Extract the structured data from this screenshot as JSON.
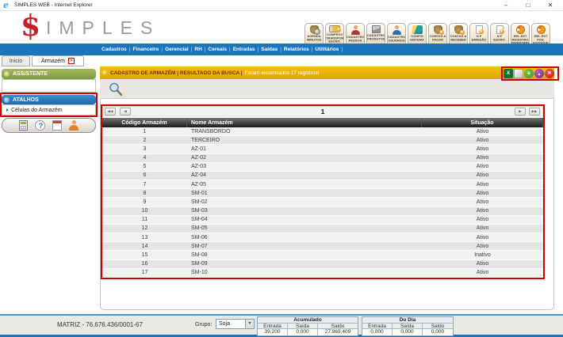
{
  "window": {
    "title": "SIMPLES WEB - Internet Explorer",
    "minimize": "–",
    "maximize": "□",
    "close": "✕"
  },
  "logo": {
    "symbol": "$",
    "letters": "IMPLES"
  },
  "quick_buttons": [
    {
      "name": "agenda-minutos",
      "label": "AGENDA MINUTOS",
      "icon": "money-bag-clock-icon"
    },
    {
      "name": "comprov-transporte-escrit",
      "label": "COMPROV TRANSPORTE ESCRIT.",
      "icon": "truck-icon"
    },
    {
      "name": "cadastro-pessoa",
      "label": "CADASTRO PESSOA",
      "icon": "person-red-icon"
    },
    {
      "name": "cadastro-produtos",
      "label": "CADASTRO PRODUTOS",
      "icon": "package-icon"
    },
    {
      "name": "cadastro-usuarios",
      "label": "CADASTRO USUÁRIOS",
      "icon": "person-blue-icon"
    },
    {
      "name": "config-sistema",
      "label": "CONFIG SISTEMA",
      "icon": "rainbow-icon"
    },
    {
      "name": "contas-a-pagar",
      "label": "CONTAS A PAGAR",
      "icon": "money-bag-plus-icon"
    },
    {
      "name": "contas-a-receber",
      "label": "CONTAS A RECEBER",
      "icon": "money-bag-plus-icon"
    },
    {
      "name": "nf-emissao",
      "label": "N F EMISSÃO",
      "icon": "document-plus-icon"
    },
    {
      "name": "nf-escrit",
      "label": "N F ESCRIT.",
      "icon": "document-plus-icon"
    },
    {
      "name": "rel-est-registro-inventario",
      "label": "REL EST REGISTRO INVENTÁRIO",
      "icon": "pie-chart-icon"
    },
    {
      "name": "rel-est-pos-estoque",
      "label": "REL EST POS. ESTOQUE",
      "icon": "pie-chart-icon"
    }
  ],
  "menu": {
    "separator": "|",
    "items": [
      "Cadastros",
      "Financeiro",
      "Gerencial",
      "RH",
      "Cereais",
      "Entradas",
      "Saídas",
      "Relatórios",
      "Utilitários"
    ]
  },
  "tabs": {
    "inicio": "Inicio",
    "armazem": "Armazém",
    "close_glyph": "✕"
  },
  "sidebar": {
    "assistente": "ASSISTENTE",
    "atalhos": "ATALHOS",
    "atalhos_items": [
      "Células do Armazém"
    ],
    "tray_icons": [
      "calculator-icon",
      "help-icon",
      "calendar-icon",
      "user-icon"
    ]
  },
  "content": {
    "header": {
      "title": "CADASTRO DE ARMAZÉM | RESULTADO DA BUSCA |",
      "message": "Foram encontrados 17 registros!"
    },
    "header_icons": [
      {
        "name": "excel-export-icon",
        "kind": "hic-excel",
        "glyph": "X"
      },
      {
        "name": "print-icon",
        "kind": "hic-file",
        "glyph": ""
      },
      {
        "name": "add-record-icon",
        "kind": "hic-add",
        "glyph": "+"
      },
      {
        "name": "collapse-up-icon",
        "kind": "hic-up",
        "glyph": "▲"
      },
      {
        "name": "close-panel-icon",
        "kind": "hic-close",
        "glyph": "✕"
      }
    ],
    "pagination": {
      "page": "1",
      "buttons": [
        {
          "name": "first-page-button",
          "glyph": "◀◀",
          "pos": "pg-l1"
        },
        {
          "name": "prev-page-button",
          "glyph": "◀",
          "pos": "pg-l2"
        },
        {
          "name": "next-page-button",
          "glyph": "▶",
          "pos": "pg-r2"
        },
        {
          "name": "last-page-button",
          "glyph": "▶▶",
          "pos": "pg-r1"
        }
      ]
    },
    "table": {
      "columns": [
        "Código Armazém",
        "Nome Armazém",
        "Situação"
      ],
      "rows": [
        [
          "1",
          "TRANSBORDO",
          "Ativo"
        ],
        [
          "2",
          "TERCEIRO",
          "Ativo"
        ],
        [
          "3",
          "AZ-01",
          "Ativo"
        ],
        [
          "4",
          "AZ-02",
          "Ativo"
        ],
        [
          "5",
          "AZ-03",
          "Ativo"
        ],
        [
          "6",
          "AZ-04",
          "Ativo"
        ],
        [
          "7",
          "AZ-05",
          "Ativo"
        ],
        [
          "8",
          "SM-01",
          "Ativo"
        ],
        [
          "9",
          "SM-02",
          "Ativo"
        ],
        [
          "10",
          "SM-03",
          "Ativo"
        ],
        [
          "11",
          "SM-04",
          "Ativo"
        ],
        [
          "12",
          "SM-05",
          "Ativo"
        ],
        [
          "13",
          "SM-06",
          "Ativo"
        ],
        [
          "14",
          "SM-07",
          "Ativo"
        ],
        [
          "15",
          "SM-08",
          "Inativo"
        ],
        [
          "16",
          "SM-09",
          "Ativo"
        ],
        [
          "17",
          "SM-10",
          "Ativo"
        ]
      ]
    }
  },
  "statusbar": {
    "company": "MATRIZ - 76.676.436/0001-67",
    "grupo_label": "Grupo:",
    "grupo_value": "Soja",
    "groups": [
      {
        "title": "Acumulado",
        "cols": [
          "Entrada",
          "Saída",
          "Saldo"
        ],
        "values": [
          "39,200",
          "0,000",
          "27.969,409"
        ]
      },
      {
        "title": "Do Dia",
        "cols": [
          "Entrada",
          "Saída",
          "Saldo"
        ],
        "values": [
          "0,000",
          "0,000",
          "0,000"
        ]
      }
    ]
  },
  "colors": {
    "menu_blue": "#1B75BC",
    "assistente_green": "#8FA64C",
    "atalhos_blue": "#1E78C0",
    "header_yellow": "#E9B606",
    "header_text_maroon": "#7D2B00",
    "annotation_red": "#CE0000",
    "table_header_dark": "#222222"
  }
}
